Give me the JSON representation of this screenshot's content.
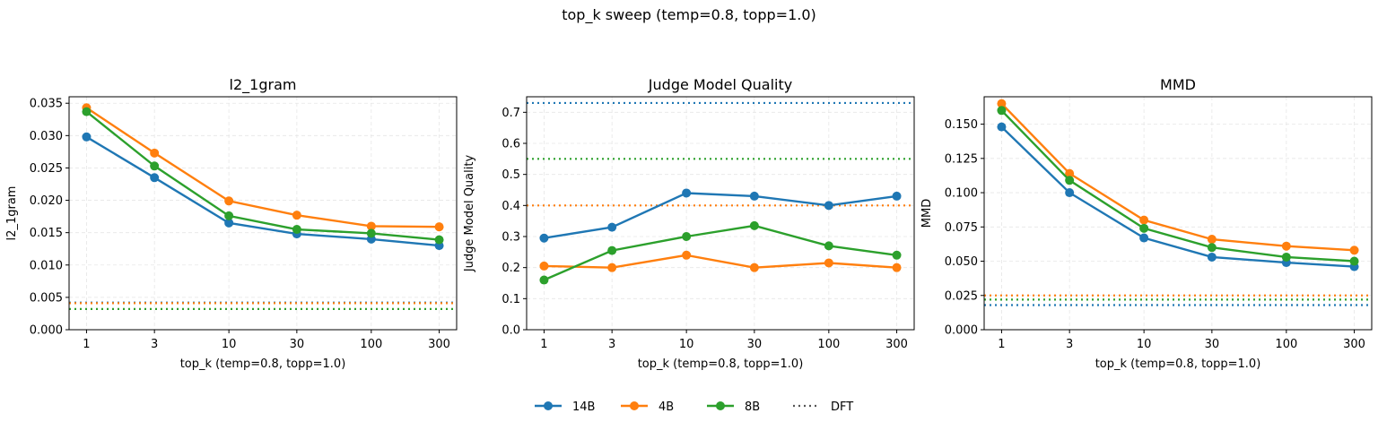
{
  "figure": {
    "suptitle": "top_k sweep (temp=0.8, topp=1.0)"
  },
  "colors": {
    "14B": "#1f77b4",
    "4B": "#ff7f0e",
    "8B": "#2ca02c"
  },
  "legend": {
    "placement": "bottom-center",
    "entries": [
      {
        "key": "14B",
        "label": "14B",
        "style": "line-marker"
      },
      {
        "key": "4B",
        "label": "4B",
        "style": "line-marker"
      },
      {
        "key": "8B",
        "label": "8B",
        "style": "line-marker"
      },
      {
        "key": "DFT",
        "label": "DFT",
        "style": "dotted"
      }
    ]
  },
  "chart_data": [
    {
      "type": "line",
      "title": "l2_1gram",
      "xlabel": "top_k (temp=0.8, topp=1.0)",
      "ylabel": "l2_1gram",
      "x": [
        "1",
        "3",
        "10",
        "30",
        "100",
        "300"
      ],
      "xscale": "log",
      "ylim": [
        0,
        0.036
      ],
      "yticks": [
        "0.000",
        "0.005",
        "0.010",
        "0.015",
        "0.020",
        "0.025",
        "0.030",
        "0.035"
      ],
      "ytick_values": [
        0,
        0.005,
        0.01,
        0.015,
        0.02,
        0.025,
        0.03,
        0.035
      ],
      "grid": true,
      "series": [
        {
          "name": "14B",
          "values": [
            0.0298,
            0.0235,
            0.0165,
            0.0148,
            0.014,
            0.013
          ]
        },
        {
          "name": "4B",
          "values": [
            0.0343,
            0.0273,
            0.0199,
            0.0177,
            0.016,
            0.0159
          ]
        },
        {
          "name": "8B",
          "values": [
            0.0337,
            0.0253,
            0.0176,
            0.0155,
            0.0149,
            0.0139
          ]
        }
      ],
      "baselines": [
        {
          "name": "DFT",
          "series": "14B",
          "value": 0.0042
        },
        {
          "name": "DFT",
          "series": "4B",
          "value": 0.0041
        },
        {
          "name": "DFT",
          "series": "8B",
          "value": 0.0032
        }
      ]
    },
    {
      "type": "line",
      "title": "Judge Model Quality",
      "xlabel": "top_k (temp=0.8, topp=1.0)",
      "ylabel": "Judge Model Quality",
      "x": [
        "1",
        "3",
        "10",
        "30",
        "100",
        "300"
      ],
      "xscale": "log",
      "ylim": [
        0,
        0.75
      ],
      "yticks": [
        "0.0",
        "0.1",
        "0.2",
        "0.3",
        "0.4",
        "0.5",
        "0.6",
        "0.7"
      ],
      "ytick_values": [
        0,
        0.1,
        0.2,
        0.3,
        0.4,
        0.5,
        0.6,
        0.7
      ],
      "grid": true,
      "series": [
        {
          "name": "14B",
          "values": [
            0.295,
            0.33,
            0.44,
            0.43,
            0.4,
            0.43
          ]
        },
        {
          "name": "4B",
          "values": [
            0.205,
            0.2,
            0.24,
            0.2,
            0.215,
            0.2
          ]
        },
        {
          "name": "8B",
          "values": [
            0.16,
            0.255,
            0.3,
            0.335,
            0.27,
            0.24
          ]
        }
      ],
      "baselines": [
        {
          "name": "DFT",
          "series": "14B",
          "value": 0.73
        },
        {
          "name": "DFT",
          "series": "8B",
          "value": 0.55
        },
        {
          "name": "DFT",
          "series": "4B",
          "value": 0.4
        }
      ]
    },
    {
      "type": "line",
      "title": "MMD",
      "xlabel": "top_k (temp=0.8, topp=1.0)",
      "ylabel": "MMD",
      "x": [
        "1",
        "3",
        "10",
        "30",
        "100",
        "300"
      ],
      "xscale": "log",
      "ylim": [
        0,
        0.17
      ],
      "yticks": [
        "0.000",
        "0.025",
        "0.050",
        "0.075",
        "0.100",
        "0.125",
        "0.150"
      ],
      "ytick_values": [
        0,
        0.025,
        0.05,
        0.075,
        0.1,
        0.125,
        0.15
      ],
      "grid": true,
      "series": [
        {
          "name": "14B",
          "values": [
            0.148,
            0.1,
            0.067,
            0.053,
            0.049,
            0.046
          ]
        },
        {
          "name": "4B",
          "values": [
            0.165,
            0.114,
            0.08,
            0.066,
            0.061,
            0.058
          ]
        },
        {
          "name": "8B",
          "values": [
            0.16,
            0.109,
            0.074,
            0.06,
            0.053,
            0.05
          ]
        }
      ],
      "baselines": [
        {
          "name": "DFT",
          "series": "4B",
          "value": 0.025
        },
        {
          "name": "DFT",
          "series": "8B",
          "value": 0.022
        },
        {
          "name": "DFT",
          "series": "14B",
          "value": 0.018
        }
      ]
    }
  ]
}
